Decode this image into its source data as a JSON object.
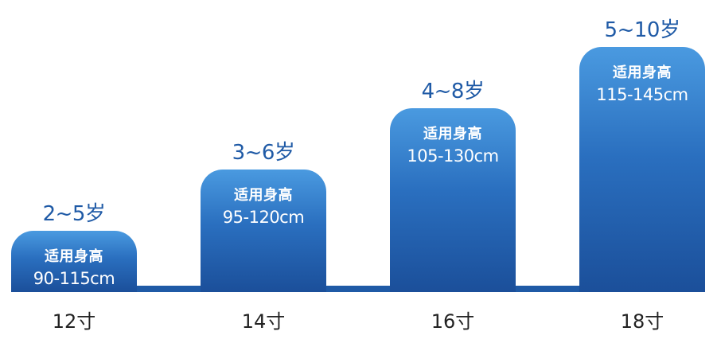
{
  "chart_data": {
    "type": "bar",
    "title": "",
    "xlabel": "",
    "ylabel": "",
    "categories": [
      "12寸",
      "14寸",
      "16寸",
      "18寸"
    ],
    "ages": [
      "2~5岁",
      "3~6岁",
      "4~8岁",
      "5~10岁"
    ],
    "bar_label": "适用身高",
    "height_ranges": [
      "90-115cm",
      "95-120cm",
      "105-130cm",
      "115-145cm"
    ],
    "values": [
      1,
      2,
      3,
      4
    ],
    "ylim": [
      0,
      4
    ],
    "colors": {
      "bar_top": "#4a9ae0",
      "bar_bottom": "#1b4f9a",
      "age_text": "#1f5aa6",
      "size_text": "#222222"
    }
  }
}
